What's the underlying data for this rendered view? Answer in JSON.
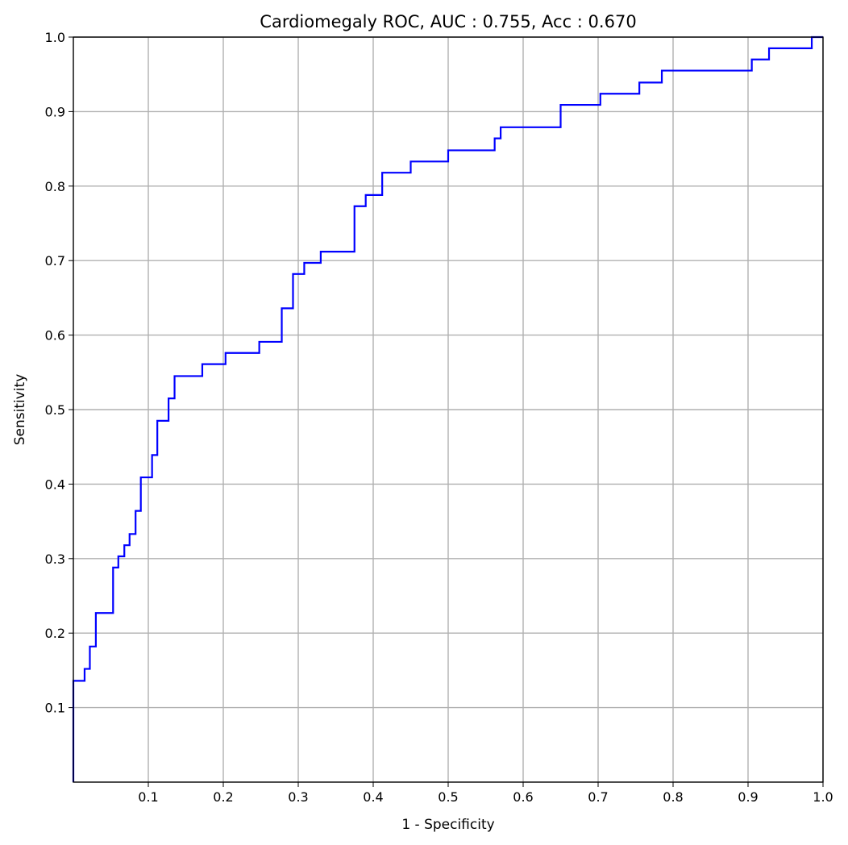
{
  "chart_data": {
    "type": "line",
    "title": "Cardiomegaly ROC, AUC : 0.755, Acc : 0.670",
    "xlabel": "1 - Specificity",
    "ylabel": "Sensitivity",
    "xlim": [
      0,
      1
    ],
    "ylim": [
      0,
      1
    ],
    "x_ticks": [
      0.1,
      0.2,
      0.3,
      0.4,
      0.5,
      0.6,
      0.7,
      0.8,
      0.9,
      1.0
    ],
    "y_ticks": [
      0.1,
      0.2,
      0.3,
      0.4,
      0.5,
      0.6,
      0.7,
      0.8,
      0.9,
      1.0
    ],
    "x_tick_labels": [
      "0.1",
      "0.2",
      "0.3",
      "0.4",
      "0.5",
      "0.6",
      "0.7",
      "0.8",
      "0.9",
      "1.0"
    ],
    "y_tick_labels": [
      "0.1",
      "0.2",
      "0.3",
      "0.4",
      "0.5",
      "0.6",
      "0.7",
      "0.8",
      "0.9",
      "1.0"
    ],
    "grid": true,
    "legend": "none",
    "series": [
      {
        "color": "#0000ff",
        "x": [
          0,
          0,
          0.015,
          0.015,
          0.022,
          0.022,
          0.03,
          0.03,
          0.053,
          0.053,
          0.06,
          0.06,
          0.068,
          0.068,
          0.075,
          0.075,
          0.083,
          0.083,
          0.09,
          0.09,
          0.105,
          0.105,
          0.112,
          0.112,
          0.127,
          0.127,
          0.135,
          0.135,
          0.172,
          0.172,
          0.203,
          0.203,
          0.248,
          0.248,
          0.278,
          0.278,
          0.293,
          0.293,
          0.308,
          0.308,
          0.33,
          0.33,
          0.375,
          0.375,
          0.39,
          0.39,
          0.412,
          0.412,
          0.45,
          0.45,
          0.5,
          0.5,
          0.562,
          0.562,
          0.57,
          0.57,
          0.65,
          0.65,
          0.703,
          0.703,
          0.755,
          0.755,
          0.785,
          0.785,
          0.905,
          0.905,
          0.928,
          0.928,
          0.985,
          0.985,
          1.0
        ],
        "y": [
          0,
          0.136,
          0.136,
          0.152,
          0.152,
          0.182,
          0.182,
          0.227,
          0.227,
          0.288,
          0.288,
          0.303,
          0.303,
          0.318,
          0.318,
          0.333,
          0.333,
          0.364,
          0.364,
          0.409,
          0.409,
          0.439,
          0.439,
          0.485,
          0.485,
          0.515,
          0.515,
          0.545,
          0.545,
          0.561,
          0.561,
          0.576,
          0.576,
          0.591,
          0.591,
          0.636,
          0.636,
          0.682,
          0.682,
          0.697,
          0.697,
          0.712,
          0.712,
          0.773,
          0.773,
          0.788,
          0.788,
          0.818,
          0.818,
          0.833,
          0.833,
          0.848,
          0.848,
          0.864,
          0.864,
          0.879,
          0.879,
          0.909,
          0.909,
          0.924,
          0.924,
          0.939,
          0.939,
          0.955,
          0.955,
          0.97,
          0.97,
          0.985,
          0.985,
          1.0,
          1.0
        ]
      }
    ]
  }
}
